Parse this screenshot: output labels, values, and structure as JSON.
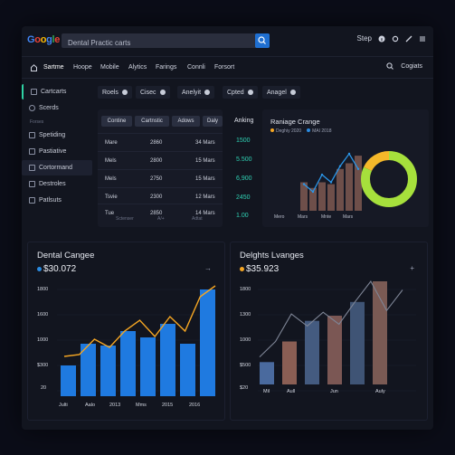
{
  "header": {
    "logo": "Google",
    "search_value": "Dental Practic carts",
    "right_label": "Step"
  },
  "nav": {
    "items": [
      "Sartme",
      "Hoope",
      "Mobile",
      "Alytics",
      "Farings",
      "Connli",
      "Forsort"
    ],
    "right_label": "Cogiats"
  },
  "sidebar": {
    "items": [
      {
        "label": "Cartcarts"
      },
      {
        "label": "Scerds"
      },
      {
        "label": "Spetiding"
      },
      {
        "label": "Pastiative"
      },
      {
        "label": "Cortormand"
      },
      {
        "label": "Destroles"
      },
      {
        "label": "Patlsuts"
      }
    ],
    "caption": "Forses"
  },
  "filters": [
    "Roels",
    "Cisec",
    "Anelyit",
    "Cpted",
    "Anagel"
  ],
  "table": {
    "chips": [
      "Contine",
      "Cartnstic",
      "Adows",
      "Daly"
    ],
    "rows": [
      {
        "name": "Mare",
        "value": "2860",
        "date": "34 Mars"
      },
      {
        "name": "Mels",
        "value": "2800",
        "date": "15 Mars"
      },
      {
        "name": "Mels",
        "value": "2750",
        "date": "15 Mars"
      },
      {
        "name": "Tsvie",
        "value": "2300",
        "date": "12 Mars"
      },
      {
        "name": "Tue",
        "value": "2850",
        "date": "14 Mars"
      }
    ],
    "footer": [
      "Sctenser",
      "A/+",
      "Adtat"
    ]
  },
  "ranking": {
    "title": "Anking",
    "values": [
      "1500",
      "5.500",
      "6,900",
      "2450",
      "1.00"
    ]
  },
  "range_chart": {
    "title": "Raniage Crange",
    "legend": [
      {
        "label": "Deghiy 2020",
        "color": "#f5a623"
      },
      {
        "label": "MAI 2018",
        "color": "#2a8be0"
      }
    ],
    "x_labels": [
      "Mero",
      "Mars",
      "Mnte",
      "Mars"
    ],
    "bar_values": [
      30,
      24,
      30,
      28,
      44,
      50,
      58
    ],
    "line_values": [
      28,
      20,
      38,
      30,
      47,
      60,
      44
    ],
    "donut": [
      {
        "label": "primary",
        "value": 82,
        "color": "#a6e03c"
      },
      {
        "label": "secondary",
        "value": 18,
        "color": "#f5b82a"
      }
    ]
  },
  "dental_chart": {
    "title": "Dental Cangee",
    "value": "$30.072",
    "value_dot_color": "#2a8be0",
    "arrow": "→",
    "y_ticks": [
      "1800",
      "1600",
      "1000",
      "$300",
      "20"
    ],
    "x_labels": [
      "Julti",
      "Aalo",
      "2013",
      "Mms",
      "2015",
      "2016"
    ],
    "bars": [
      3.4,
      5.8,
      5.6,
      7.2,
      6.5,
      8.0,
      5.8,
      11.8
    ],
    "line": [
      4.4,
      4.6,
      6.3,
      5.4,
      7.2,
      8.4,
      6.6,
      8.8,
      7.2,
      11.0,
      12.2
    ]
  },
  "delights_chart": {
    "title": "Delghts Lvanges",
    "value": "$35.923",
    "value_dot_color": "#f5a623",
    "arrow": "+",
    "y_ticks": [
      "1800",
      "1300",
      "1000",
      "$500",
      "$20"
    ],
    "x_labels": [
      "Mil",
      "Aull",
      "Jun",
      "Auly"
    ],
    "bars": [
      {
        "value": 2.6,
        "color": "#4a6a9e"
      },
      {
        "value": 5.0,
        "color": "#8a5e54"
      },
      {
        "value": 7.4,
        "color": "#445b80"
      },
      {
        "value": 8.0,
        "color": "#7b5754"
      },
      {
        "value": 9.6,
        "color": "#3f5475"
      },
      {
        "value": 12.0,
        "color": "#7a5a54"
      }
    ],
    "line": [
      3.2,
      5.0,
      8.2,
      6.8,
      8.4,
      7.0,
      9.6,
      12.0,
      8.6,
      11.0
    ]
  }
}
